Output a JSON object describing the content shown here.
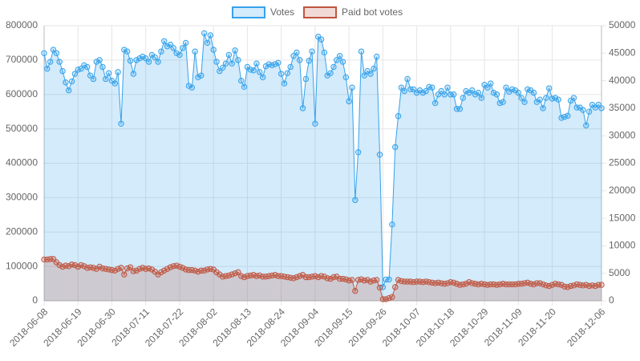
{
  "chart_data": {
    "type": "line",
    "categories": [
      "2018-06-08",
      null,
      null,
      null,
      null,
      null,
      null,
      null,
      null,
      null,
      null,
      "2018-06-19",
      null,
      null,
      null,
      null,
      null,
      null,
      null,
      null,
      null,
      null,
      "2018-06-30",
      null,
      null,
      null,
      null,
      null,
      null,
      null,
      null,
      null,
      null,
      "2018-07-11",
      null,
      null,
      null,
      null,
      null,
      null,
      null,
      null,
      null,
      null,
      "2018-07-22",
      null,
      null,
      null,
      null,
      null,
      null,
      null,
      null,
      null,
      null,
      "2018-08-02",
      null,
      null,
      null,
      null,
      null,
      null,
      null,
      null,
      null,
      null,
      "2018-08-13",
      null,
      null,
      null,
      null,
      null,
      null,
      null,
      null,
      null,
      null,
      "2018-08-24",
      null,
      null,
      null,
      null,
      null,
      null,
      null,
      null,
      null,
      null,
      "2018-09-04",
      null,
      null,
      null,
      null,
      null,
      null,
      null,
      null,
      null,
      null,
      "2018-09-15",
      null,
      null,
      null,
      null,
      null,
      null,
      null,
      null,
      null,
      null,
      "2018-09-26",
      null,
      null,
      null,
      null,
      null,
      null,
      null,
      null,
      null,
      null,
      "2018-10-07",
      null,
      null,
      null,
      null,
      null,
      null,
      null,
      null,
      null,
      null,
      "2018-10-18",
      null,
      null,
      null,
      null,
      null,
      null,
      null,
      null,
      null,
      null,
      "2018-10-29",
      null,
      null,
      null,
      null,
      null,
      null,
      null,
      null,
      null,
      null,
      "2018-11-09",
      null,
      null,
      null,
      null,
      null,
      null,
      null,
      null,
      null,
      null,
      "2018-11-20",
      null,
      null,
      null,
      null,
      null,
      null,
      null,
      null,
      null,
      null,
      null,
      null,
      null,
      null,
      null,
      "2018-12-06"
    ],
    "series": [
      {
        "name": "Votes",
        "color": "#36a2eb",
        "fill": "rgba(54,162,235,0.22)",
        "values": [
          720000,
          675000,
          695000,
          730000,
          720000,
          695000,
          668000,
          635000,
          612000,
          638000,
          660000,
          672000,
          675000,
          685000,
          680000,
          655000,
          645000,
          695000,
          700000,
          680000,
          645000,
          662000,
          640000,
          632000,
          665000,
          515000,
          730000,
          725000,
          698000,
          660000,
          700000,
          705000,
          710000,
          705000,
          695000,
          715000,
          708000,
          695000,
          725000,
          755000,
          740000,
          745000,
          735000,
          720000,
          715000,
          735000,
          750000,
          625000,
          620000,
          725000,
          650000,
          655000,
          778000,
          750000,
          772000,
          730000,
          695000,
          668000,
          678000,
          690000,
          715000,
          690000,
          728000,
          700000,
          640000,
          622000,
          680000,
          672000,
          670000,
          690000,
          665000,
          650000,
          682000,
          688000,
          685000,
          688000,
          692000,
          660000,
          632000,
          662000,
          680000,
          712000,
          722000,
          700000,
          560000,
          645000,
          698000,
          725000,
          515000,
          768000,
          760000,
          722000,
          655000,
          662000,
          680000,
          700000,
          712000,
          695000,
          650000,
          580000,
          620000,
          293000,
          432000,
          725000,
          655000,
          668000,
          660000,
          675000,
          710000,
          425000,
          40000,
          62000,
          62000,
          222000,
          447000,
          537000,
          620000,
          610000,
          645000,
          615000,
          615000,
          605000,
          612000,
          605000,
          610000,
          622000,
          620000,
          575000,
          600000,
          610000,
          600000,
          620000,
          600000,
          600000,
          558000,
          558000,
          590000,
          610000,
          605000,
          612000,
          600000,
          605000,
          590000,
          628000,
          620000,
          632000,
          605000,
          600000,
          575000,
          578000,
          620000,
          608000,
          615000,
          612000,
          605000,
          590000,
          578000,
          615000,
          612000,
          605000,
          578000,
          585000,
          560000,
          590000,
          618000,
          588000,
          590000,
          585000,
          532000,
          535000,
          538000,
          582000,
          590000,
          562000,
          562000,
          555000,
          510000,
          550000,
          570000,
          562000,
          570000,
          560000
        ]
      },
      {
        "name": "Paid bot votes",
        "color": "#c0553f",
        "fill": "rgba(192,85,63,0.22)",
        "axis": "y2",
        "values": [
          7500,
          7500,
          7600,
          7600,
          7000,
          6500,
          6200,
          6400,
          6300,
          6600,
          6500,
          6200,
          6500,
          6300,
          6000,
          6100,
          6000,
          5800,
          6200,
          5900,
          5800,
          5700,
          5600,
          5500,
          5800,
          6000,
          4800,
          5900,
          6100,
          5400,
          5500,
          5800,
          6000,
          5800,
          5900,
          5700,
          5300,
          4800,
          5200,
          5500,
          5800,
          6100,
          6300,
          6400,
          6200,
          6000,
          5700,
          5600,
          5600,
          5500,
          5300,
          5500,
          5500,
          5700,
          5800,
          5700,
          5200,
          4800,
          4400,
          4500,
          4600,
          4800,
          5000,
          5200,
          4500,
          4300,
          4500,
          4600,
          4700,
          4500,
          4600,
          4400,
          4400,
          4500,
          4600,
          4700,
          4500,
          4500,
          4400,
          4300,
          4200,
          4100,
          4300,
          4500,
          4700,
          4300,
          4300,
          4400,
          4500,
          4300,
          4500,
          4400,
          4100,
          4000,
          4300,
          4400,
          4000,
          4000,
          3900,
          3700,
          3800,
          1800,
          3800,
          3900,
          3700,
          3800,
          3500,
          3700,
          3800,
          2400,
          300,
          300,
          500,
          700,
          2500,
          3800,
          3600,
          3500,
          3500,
          3500,
          3400,
          3500,
          3500,
          3400,
          3500,
          3400,
          3300,
          3200,
          3300,
          3200,
          3100,
          3200,
          3400,
          3300,
          3100,
          2900,
          3000,
          3100,
          3400,
          3200,
          3100,
          3000,
          3100,
          3000,
          2900,
          3000,
          3000,
          2900,
          3000,
          3100,
          3000,
          3000,
          3000,
          3000,
          3100,
          3100,
          3200,
          3300,
          3100,
          3000,
          3200,
          3200,
          3000,
          2800,
          2700,
          2900,
          3100,
          3000,
          2900,
          2600,
          2500,
          2700,
          2800,
          3000,
          2900,
          2800,
          2900,
          2700,
          2800,
          2700,
          2900,
          2900
        ]
      }
    ],
    "ylim": [
      0,
      800000
    ],
    "yticks": [
      0,
      100000,
      200000,
      300000,
      400000,
      500000,
      600000,
      700000,
      800000
    ],
    "y2lim": [
      0,
      50000
    ],
    "y2ticks": [
      0,
      5000,
      10000,
      15000,
      20000,
      25000,
      30000,
      35000,
      40000,
      45000,
      50000
    ],
    "grid": true,
    "legend": "top"
  }
}
